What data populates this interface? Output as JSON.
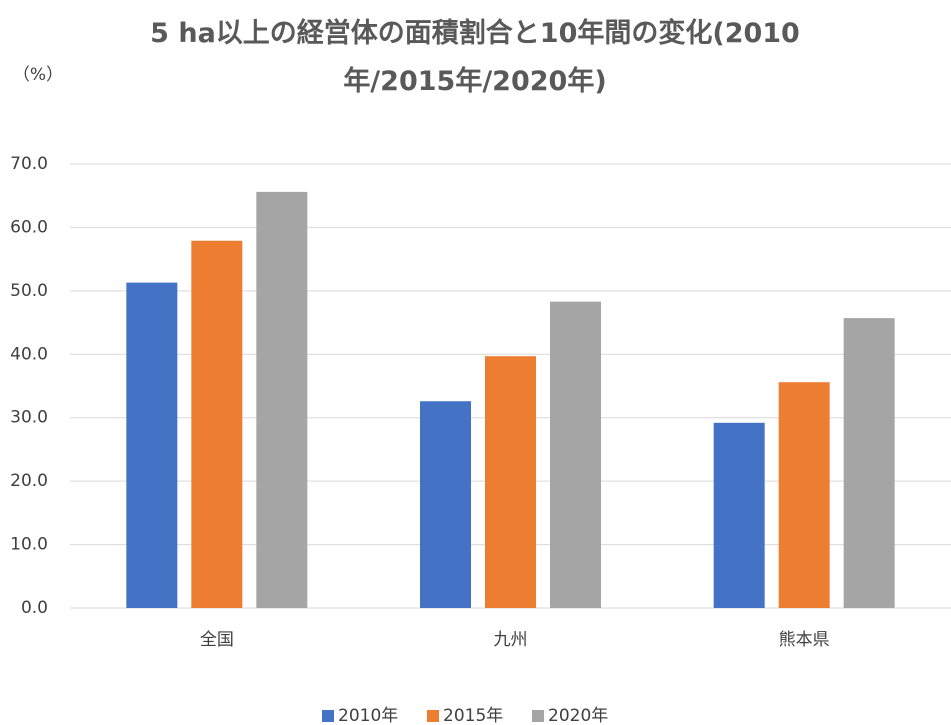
{
  "chart_data": {
    "type": "bar",
    "title": "5 ha以上の経営体の面積割合と10年間の変化(2010年/2015年/2020年)",
    "y_label": "（%）",
    "categories": [
      "全国",
      "九州",
      "熊本県"
    ],
    "series": [
      {
        "name": "2010年",
        "color": "#4472c4",
        "values": [
          51.3,
          32.6,
          29.2
        ]
      },
      {
        "name": "2015年",
        "color": "#ed7d31",
        "values": [
          57.9,
          39.7,
          35.6
        ]
      },
      {
        "name": "2020年",
        "color": "#a5a5a5",
        "values": [
          65.6,
          48.3,
          45.7
        ]
      }
    ],
    "ylim": [
      0,
      70
    ],
    "yticks": [
      {
        "value": 0,
        "label": "0.0"
      },
      {
        "value": 10,
        "label": "10.0"
      },
      {
        "value": 20,
        "label": "20.0"
      },
      {
        "value": 30,
        "label": "30.0"
      },
      {
        "value": 40,
        "label": "40.0"
      },
      {
        "value": 50,
        "label": "50.0"
      },
      {
        "value": 60,
        "label": "60.0"
      },
      {
        "value": 70,
        "label": "70.0"
      }
    ],
    "grid": true,
    "legend": "bottom"
  }
}
